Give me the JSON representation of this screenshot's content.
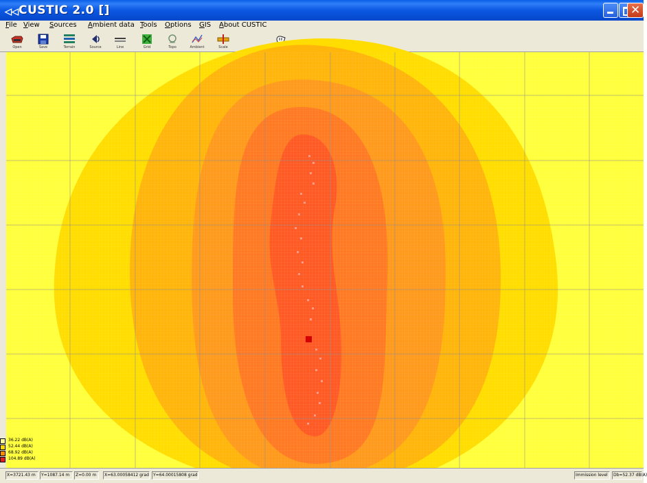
{
  "window": {
    "title": "CUSTIC 2.0  []",
    "app_icon": "custic-app-icon"
  },
  "menu": [
    {
      "label": "File"
    },
    {
      "label": "View"
    },
    {
      "label": "Sources"
    },
    {
      "label": "Ambient data"
    },
    {
      "label": "Tools"
    },
    {
      "label": "Options"
    },
    {
      "label": "GIS"
    },
    {
      "label": "About CUSTIC"
    }
  ],
  "toolbar": [
    {
      "icon": "open-folder-icon",
      "label": "Open"
    },
    {
      "icon": "save-disk-icon",
      "label": "Save"
    },
    {
      "icon": "terrain-icon",
      "label": "Terrain"
    },
    {
      "icon": "source-icon",
      "label": "Source"
    },
    {
      "icon": "line-source-icon",
      "label": "Line"
    },
    {
      "icon": "grid-icon",
      "label": "Grid"
    },
    {
      "icon": "topo-icon",
      "label": "Topo"
    },
    {
      "icon": "ambient-icon",
      "label": "Ambient"
    },
    {
      "icon": "scale-icon",
      "label": "Scale"
    },
    {
      "icon": "pointer-hand-icon",
      "label": ""
    }
  ],
  "legend": [
    {
      "label": "36.22 dB(A)",
      "color": "#ffff99"
    },
    {
      "label": "52.44 dB(A)",
      "color": "#ffd700"
    },
    {
      "label": "68.92 dB(A)",
      "color": "#ff8c00"
    },
    {
      "label": "104.89 dB(A)",
      "color": "#e51d1d"
    }
  ],
  "status": {
    "x": "X=3721.43 m",
    "y": "Y=1087.14 m",
    "z": "Z=0.00 m",
    "lon": "X=63.00058412 grad",
    "lat": "Y=64.00015808 grad",
    "mode": "Immission level",
    "value": "Db=52.37 dB(A)"
  },
  "colors": {
    "light_yellow": "#ffff52",
    "yellow": "#ffdd00",
    "light_orange": "#ffb400",
    "orange": "#ff8a1e",
    "dark_orange": "#ff6a1e",
    "red": "#ff4422",
    "source_marker": "#d40000"
  }
}
